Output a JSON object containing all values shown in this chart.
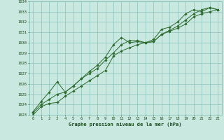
{
  "xlabel": "Graphe pression niveau de la mer (hPa)",
  "x": [
    0,
    1,
    2,
    3,
    4,
    5,
    6,
    7,
    8,
    9,
    10,
    11,
    12,
    13,
    14,
    15,
    16,
    17,
    18,
    19,
    20,
    21,
    22,
    23
  ],
  "line1": [
    1023.0,
    1023.8,
    1024.1,
    1024.2,
    1024.8,
    1025.3,
    1025.8,
    1026.3,
    1026.8,
    1027.3,
    1028.7,
    1029.2,
    1029.5,
    1029.8,
    1030.0,
    1030.1,
    1030.8,
    1031.1,
    1031.4,
    1031.8,
    1032.5,
    1032.8,
    1033.0,
    1033.2
  ],
  "line2": [
    1023.2,
    1024.0,
    1024.5,
    1025.0,
    1025.2,
    1025.8,
    1026.5,
    1027.0,
    1027.5,
    1028.3,
    1029.0,
    1029.8,
    1030.2,
    1030.2,
    1030.0,
    1030.1,
    1030.8,
    1031.2,
    1031.6,
    1032.2,
    1032.8,
    1033.2,
    1033.4,
    1033.2
  ],
  "line3": [
    1023.3,
    1024.3,
    1025.2,
    1026.2,
    1025.2,
    1025.8,
    1026.5,
    1027.2,
    1027.8,
    1028.6,
    1029.8,
    1030.5,
    1030.0,
    1030.1,
    1030.0,
    1030.3,
    1031.3,
    1031.5,
    1032.0,
    1032.8,
    1033.2,
    1033.0,
    1033.4,
    1033.2
  ],
  "line_color": "#2d6a2d",
  "bg_color": "#c8e8e0",
  "grid_color": "#7db8b0",
  "text_color": "#1a4a1a",
  "ylim_min": 1023,
  "ylim_max": 1034,
  "yticks": [
    1023,
    1024,
    1025,
    1026,
    1027,
    1028,
    1029,
    1030,
    1031,
    1032,
    1033,
    1034
  ],
  "xticks": [
    0,
    1,
    2,
    3,
    4,
    5,
    6,
    7,
    8,
    9,
    10,
    11,
    12,
    13,
    14,
    15,
    16,
    17,
    18,
    19,
    20,
    21,
    22,
    23
  ]
}
